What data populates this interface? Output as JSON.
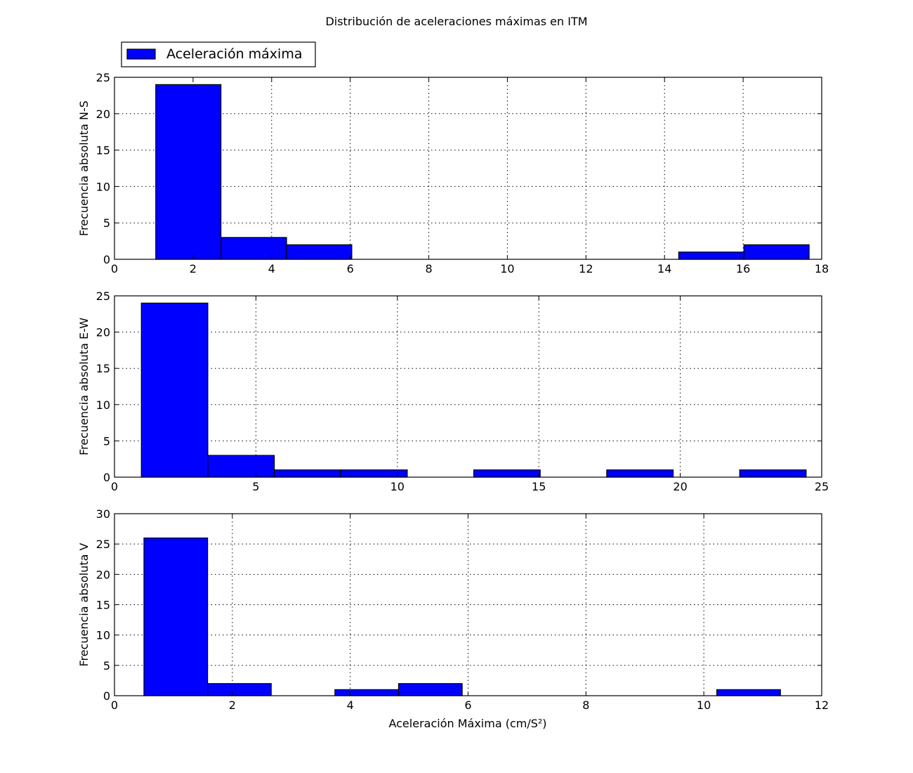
{
  "chart_data": {
    "type": "histogram",
    "title": "Distribución de aceleraciones máximas en ITM",
    "legend": {
      "label": "Aceleración máxima",
      "color": "#0000ff",
      "placement": "upper-left, above first panel"
    },
    "bar_color": "#0000ff",
    "grid": true,
    "xlabel": "Aceleración Máxima (cm/S²)",
    "panels": [
      {
        "ylabel": "Frecuencia absoluta N-S",
        "xlim": [
          0,
          18
        ],
        "ylim": [
          0,
          25
        ],
        "xticks": [
          0,
          2,
          4,
          6,
          8,
          10,
          12,
          14,
          16,
          18
        ],
        "yticks": [
          0,
          5,
          10,
          15,
          20,
          25
        ],
        "bin_edges": [
          1.05,
          2.71,
          4.38,
          6.04,
          7.7,
          9.37,
          11.03,
          12.69,
          14.36,
          16.02,
          17.68
        ],
        "counts": [
          24,
          3,
          2,
          0,
          0,
          0,
          0,
          0,
          1,
          2
        ]
      },
      {
        "ylabel": "Frecuencia absoluta E-W",
        "xlim": [
          0,
          25
        ],
        "ylim": [
          0,
          25
        ],
        "xticks": [
          0,
          5,
          10,
          15,
          20,
          25
        ],
        "yticks": [
          0,
          5,
          10,
          15,
          20,
          25
        ],
        "bin_edges": [
          0.95,
          3.3,
          5.65,
          8.0,
          10.35,
          12.7,
          15.05,
          17.4,
          19.75,
          22.1,
          24.45
        ],
        "counts": [
          24,
          3,
          1,
          1,
          0,
          1,
          0,
          1,
          0,
          1
        ]
      },
      {
        "ylabel": "Frecuencia absoluta V",
        "xlim": [
          0,
          12
        ],
        "ylim": [
          0,
          30
        ],
        "xticks": [
          0,
          2,
          4,
          6,
          8,
          10,
          12
        ],
        "yticks": [
          0,
          5,
          10,
          15,
          20,
          25,
          30
        ],
        "bin_edges": [
          0.5,
          1.58,
          2.66,
          3.74,
          4.82,
          5.9,
          6.98,
          8.06,
          9.14,
          10.22,
          11.3
        ],
        "counts": [
          26,
          2,
          0,
          1,
          2,
          0,
          0,
          0,
          0,
          1
        ]
      }
    ]
  }
}
